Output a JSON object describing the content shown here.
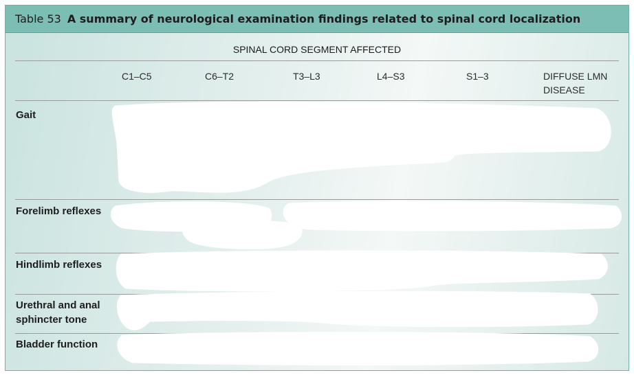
{
  "table": {
    "number": "Table 53",
    "title": "A summary of neurological examination findings related to spinal cord localization",
    "group_heading": "SPINAL CORD SEGMENT AFFECTED",
    "columns": [
      "C1–C5",
      "C6–T2",
      "T3–L3",
      "L4–S3",
      "S1–3",
      "DIFFUSE LMN DISEASE"
    ],
    "rows": [
      {
        "label": "Gait"
      },
      {
        "label": "Forelimb reflexes"
      },
      {
        "label": "Hindlimb reflexes"
      },
      {
        "label": "Urethral and anal sphincter tone"
      },
      {
        "label": "Bladder function"
      }
    ]
  },
  "colors": {
    "title_bar": "#7dbeb4",
    "border": "#6fb0a6",
    "redaction": "#ffffff"
  }
}
